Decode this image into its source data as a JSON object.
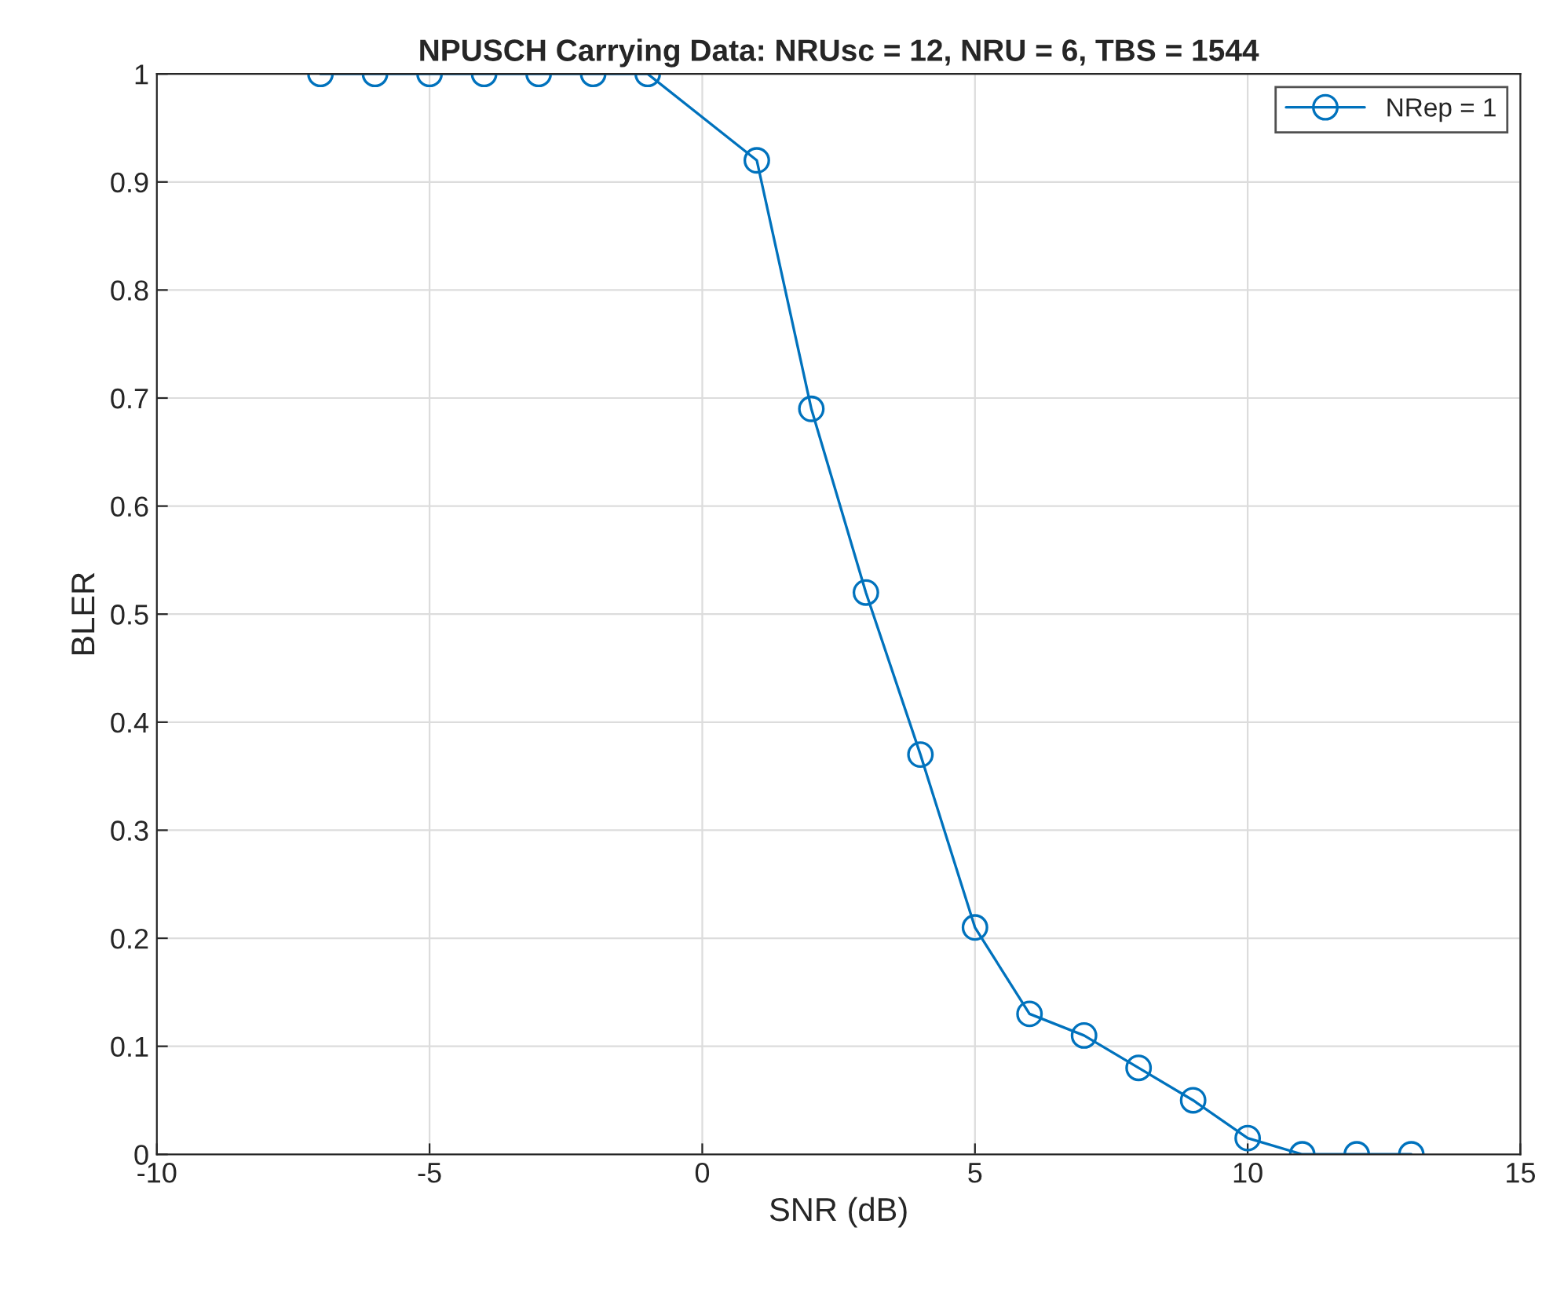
{
  "chart_data": {
    "type": "line",
    "title": "NPUSCH Carrying Data: NRUsc = 12, NRU = 6, TBS = 1544",
    "xlabel": "SNR (dB)",
    "ylabel": "BLER",
    "x": [
      -7,
      -6,
      -5,
      -4,
      -3,
      -2,
      -1,
      1,
      2,
      3,
      4,
      5,
      6,
      7,
      8,
      9,
      10,
      11,
      12,
      13
    ],
    "series": [
      {
        "name": "NRep = 1",
        "color": "#0072bd",
        "values": [
          1,
          1,
          1,
          1,
          1,
          1,
          1,
          0.92,
          0.69,
          0.52,
          0.37,
          0.21,
          0.13,
          0.11,
          0.08,
          0.05,
          0.015,
          0,
          0,
          0
        ]
      }
    ],
    "xlim": [
      -10,
      15
    ],
    "xticks": [
      -10,
      -5,
      0,
      5,
      10,
      15
    ],
    "ylim": [
      0,
      1
    ],
    "yticks": [
      0,
      0.1,
      0.2,
      0.3,
      0.4,
      0.5,
      0.6,
      0.7,
      0.8,
      0.9,
      1
    ],
    "grid": true,
    "legend": "top right",
    "marker": "circle",
    "line_style": "solid"
  }
}
